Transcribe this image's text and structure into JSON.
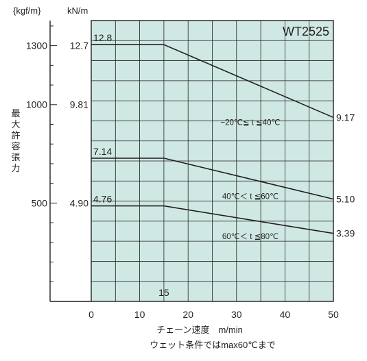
{
  "chart_data": {
    "type": "line",
    "model_label": "WT2525",
    "x": {
      "label": "チェーン速度　m/min",
      "ticks": [
        0,
        10,
        20,
        30,
        40,
        50
      ],
      "range": [
        0,
        50
      ]
    },
    "y_unit_kgf": "{kgf/m}",
    "y_unit_kn": "kN/m",
    "y_label": [
      "最",
      "大",
      "許",
      "容",
      "張",
      "力"
    ],
    "y_ticks_kgf": [
      {
        "label": "1300",
        "kn": 12.75
      },
      {
        "label": "1000",
        "kn": 9.81
      },
      {
        "label": "500",
        "kn": 4.9
      }
    ],
    "y_ticks_kn": [
      {
        "label": "12.7",
        "kn": 12.75
      },
      {
        "label": "9.81",
        "kn": 9.81
      },
      {
        "label": "4.90",
        "kn": 4.9
      }
    ],
    "y_range_kn": [
      0,
      14
    ],
    "grid": true,
    "x_annotation": {
      "text": "15",
      "x": 15
    },
    "series": [
      {
        "condition": "−20℃≦ t ≦40℃",
        "start_label": "12.8",
        "end_label": "9.17",
        "points": [
          [
            0,
            12.8
          ],
          [
            15,
            12.8
          ],
          [
            50,
            9.17
          ]
        ]
      },
      {
        "condition": "40℃＜ t ≦60℃",
        "start_label": "7.14",
        "end_label": "5.10",
        "points": [
          [
            0,
            7.14
          ],
          [
            15,
            7.14
          ],
          [
            50,
            5.1
          ]
        ]
      },
      {
        "condition": "60℃＜ t ≦80℃",
        "start_label": "4.76",
        "end_label": "3.39",
        "points": [
          [
            0,
            4.76
          ],
          [
            15,
            4.76
          ],
          [
            50,
            3.39
          ]
        ]
      }
    ],
    "footnote": "ウェット条件ではmax60℃まで"
  },
  "colors": {
    "plot_bg": "#cfe8e4",
    "grid": "#231f20",
    "line": "#231f20"
  }
}
